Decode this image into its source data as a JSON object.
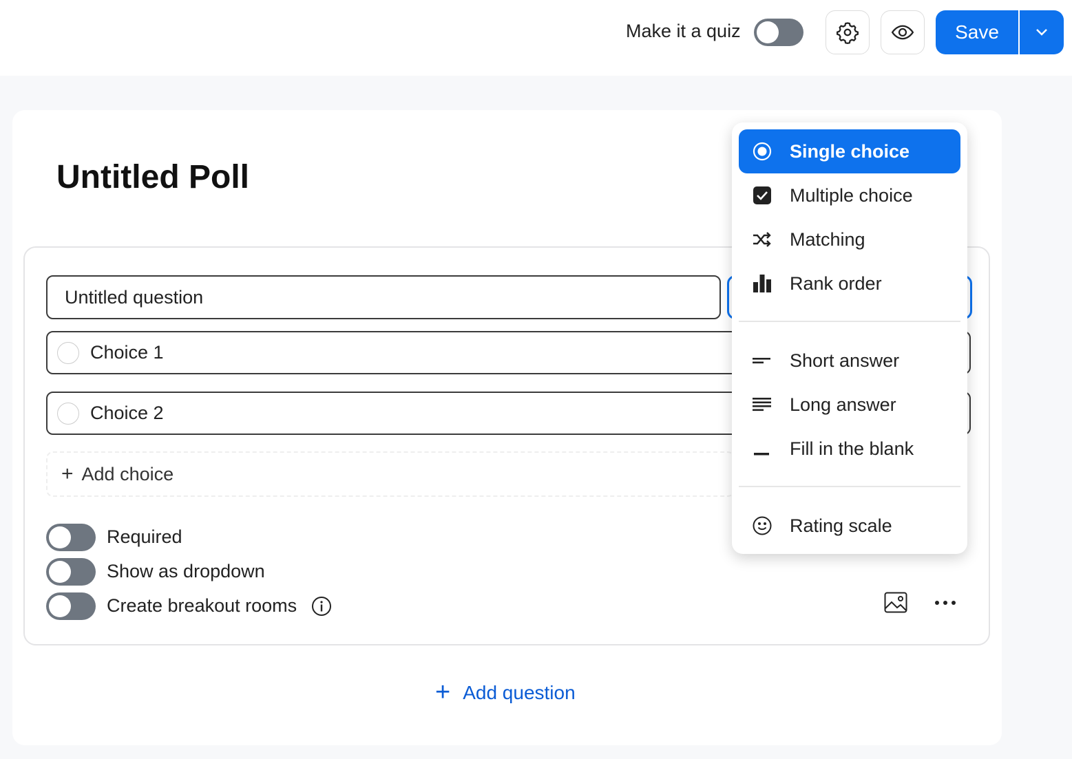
{
  "header": {
    "quiz_label": "Make it a quiz",
    "quiz_enabled": false,
    "save_label": "Save"
  },
  "poll": {
    "title": "Untitled Poll"
  },
  "question": {
    "title": "Untitled question",
    "choices": [
      "Choice 1",
      "Choice 2"
    ],
    "add_choice": "Add choice",
    "options": [
      {
        "label": "Required",
        "enabled": false
      },
      {
        "label": "Show as dropdown",
        "enabled": false
      },
      {
        "label": "Create breakout rooms",
        "enabled": false
      }
    ]
  },
  "type_menu": {
    "selected": "Single choice",
    "items": [
      {
        "label": "Single choice",
        "icon": "radio-icon"
      },
      {
        "label": "Multiple choice",
        "icon": "checkbox-icon"
      },
      {
        "label": "Matching",
        "icon": "shuffle-icon"
      },
      {
        "label": "Rank order",
        "icon": "bar-chart-icon"
      },
      {
        "label": "Short answer",
        "icon": "short-text-icon"
      },
      {
        "label": "Long answer",
        "icon": "long-text-icon"
      },
      {
        "label": "Fill in the blank",
        "icon": "blank-icon"
      },
      {
        "label": "Rating scale",
        "icon": "smiley-icon"
      }
    ]
  },
  "add_question": "Add question",
  "colors": {
    "accent": "#0e72ed",
    "toggle_off": "#6e7680"
  }
}
